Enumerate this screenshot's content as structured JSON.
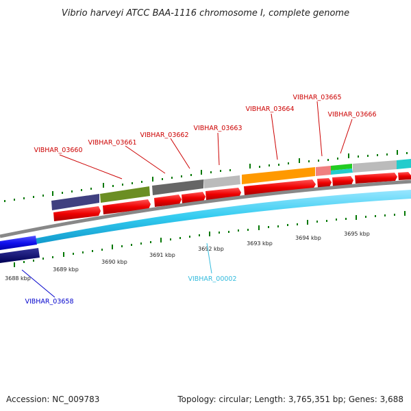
{
  "title": "Vibrio harveyi ATCC BAA-1116 chromosome I, complete genome",
  "footer": {
    "accession": "Accession: NC_009783",
    "summary": "Topology: circular; Length: 3,765,351 bp; Genes: 3,688"
  },
  "colors": {
    "forward_cds": "#ee0000",
    "reverse_cds": "#1111dd",
    "rna": "#33bbdd",
    "tick": "#007700",
    "backbone": "#888888"
  },
  "ticks": [
    "3688 kbp",
    "3689 kbp",
    "3690 kbp",
    "3691 kbp",
    "3692 kbp",
    "3693 kbp",
    "3694 kbp",
    "3695 kbp"
  ],
  "genes": {
    "forward": [
      "VIBHAR_03660",
      "VIBHAR_03661",
      "VIBHAR_03662",
      "VIBHAR_03663",
      "VIBHAR_03664",
      "VIBHAR_03665",
      "VIBHAR_03666"
    ],
    "reverse": [
      "VIBHAR_03658"
    ],
    "rna": [
      "VIBHAR_00002"
    ]
  }
}
